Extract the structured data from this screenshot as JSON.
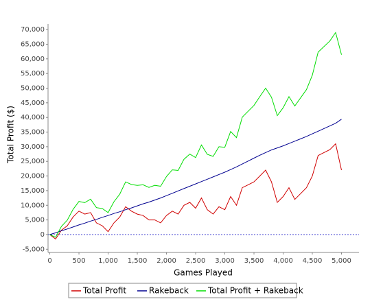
{
  "chart_data": {
    "type": "line",
    "x_label": "Games Played",
    "y_label": "Total Profit ($)",
    "x": [
      0,
      100,
      200,
      300,
      400,
      500,
      600,
      700,
      800,
      900,
      1000,
      1100,
      1200,
      1300,
      1400,
      1500,
      1600,
      1700,
      1800,
      1900,
      2000,
      2100,
      2200,
      2300,
      2400,
      2500,
      2600,
      2700,
      2800,
      2900,
      3000,
      3100,
      3200,
      3300,
      3400,
      3500,
      3600,
      3700,
      3800,
      3900,
      4000,
      4100,
      4200,
      4300,
      4400,
      4500,
      4600,
      4700,
      4800,
      4900,
      5000
    ],
    "series": [
      {
        "name": "Total Profit",
        "color": "#d00000",
        "values": [
          0,
          -1500,
          1500,
          3000,
          6000,
          8000,
          7000,
          7500,
          4000,
          3000,
          1000,
          4000,
          6000,
          9500,
          8000,
          7000,
          6500,
          5000,
          5000,
          4000,
          6500,
          8000,
          7000,
          10000,
          11000,
          9000,
          12500,
          8500,
          7000,
          9500,
          8500,
          13000,
          10000,
          16000,
          17000,
          18000,
          20000,
          22000,
          18000,
          11000,
          13000,
          16000,
          12000,
          14000,
          16000,
          20000,
          27000,
          28000,
          29000,
          31000,
          22000
        ]
      },
      {
        "name": "Rakeback",
        "color": "#000090",
        "values": [
          0,
          600,
          1300,
          1900,
          2600,
          3300,
          3900,
          4600,
          5200,
          5900,
          6500,
          7200,
          7800,
          8500,
          9100,
          9800,
          10500,
          11100,
          11800,
          12500,
          13300,
          14100,
          14900,
          15700,
          16500,
          17300,
          18100,
          18900,
          19700,
          20500,
          21300,
          22200,
          23100,
          24100,
          25100,
          26100,
          27100,
          28000,
          28900,
          29600,
          30300,
          31100,
          31900,
          32700,
          33500,
          34400,
          35300,
          36200,
          37100,
          38000,
          39400
        ]
      },
      {
        "name": "Total Profit + Rakeback",
        "color": "#00dd00",
        "values": [
          0,
          -900,
          2800,
          4900,
          8600,
          11300,
          10900,
          12100,
          9200,
          8900,
          7500,
          11200,
          13800,
          18000,
          17100,
          16800,
          17000,
          16100,
          16800,
          16500,
          19800,
          22100,
          21900,
          25700,
          27500,
          26300,
          30600,
          27400,
          26700,
          30000,
          29800,
          35200,
          33100,
          40100,
          42100,
          44100,
          47100,
          50000,
          46900,
          40600,
          43300,
          47100,
          43900,
          46700,
          49500,
          54400,
          62300,
          64200,
          66100,
          69000,
          61400
        ]
      }
    ],
    "xlim": [
      -30,
      5300
    ],
    "ylim": [
      -6100,
      71900
    ],
    "xticks": [
      0,
      500,
      {
        "value": 1000,
        "label": "1,000"
      },
      {
        "value": 1500,
        "label": "1,500"
      },
      {
        "value": 2000,
        "label": "2,000"
      },
      {
        "value": 2500,
        "label": "2,500"
      },
      {
        "value": 3000,
        "label": "3,000"
      },
      {
        "value": 3500,
        "label": "3,500"
      },
      {
        "value": 4000,
        "label": "4,000"
      },
      {
        "value": 4500,
        "label": "4,500"
      },
      {
        "value": 5000,
        "label": "5,000"
      }
    ],
    "yticks": [
      {
        "value": -5000,
        "label": "-5,000"
      },
      0,
      {
        "value": 5000,
        "label": "5,000"
      },
      {
        "value": 10000,
        "label": "10,000"
      },
      {
        "value": 15000,
        "label": "15,000"
      },
      {
        "value": 20000,
        "label": "20,000"
      },
      {
        "value": 25000,
        "label": "25,000"
      },
      {
        "value": 30000,
        "label": "30,000"
      },
      {
        "value": 35000,
        "label": "35,000"
      },
      {
        "value": 40000,
        "label": "40,000"
      },
      {
        "value": 45000,
        "label": "45,000"
      },
      {
        "value": 50000,
        "label": "50,000"
      },
      {
        "value": 55000,
        "label": "55,000"
      },
      {
        "value": 60000,
        "label": "60,000"
      },
      {
        "value": 65000,
        "label": "65,000"
      },
      {
        "value": 70000,
        "label": "70,000"
      }
    ],
    "grid": false,
    "legend": "bottom"
  }
}
